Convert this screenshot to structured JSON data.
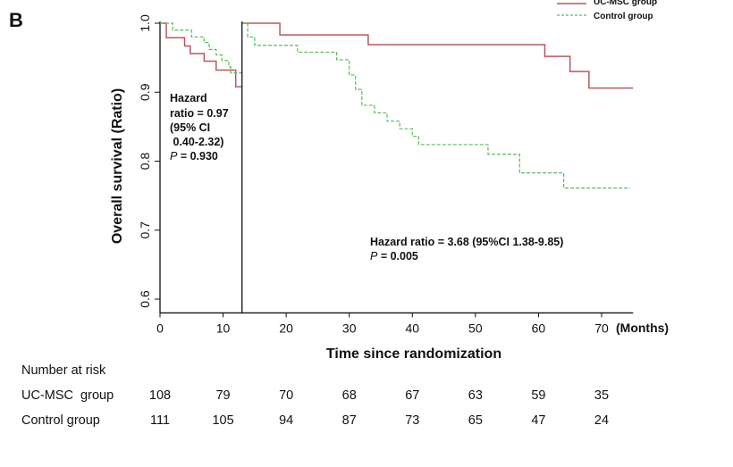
{
  "panel_label": "B",
  "chart_data": {
    "type": "line",
    "subtype": "kaplan-meier step",
    "xlabel": "Time since randomization",
    "x_unit_label": "(Months)",
    "ylabel": "Overall survival (Ratio)",
    "xlim": [
      0,
      75
    ],
    "ylim": [
      0.58,
      1.0
    ],
    "x_ticks": [
      0,
      10,
      20,
      30,
      40,
      50,
      60,
      70
    ],
    "y_ticks": [
      0.6,
      0.7,
      0.8,
      0.9,
      1.0
    ],
    "grid": false,
    "legend_position": "top-right",
    "landmark_month": 13,
    "colors": {
      "uc_msc": "#b5595c",
      "control": "#5cb85c",
      "axis": "#111111"
    },
    "series": [
      {
        "name": "UC-MSC group",
        "style": "solid",
        "segments": [
          {
            "x": [
              0,
              1,
              3.9,
              4.8,
              7,
              8.9,
              12,
              13
            ],
            "y": [
              1.0,
              0.979,
              0.967,
              0.956,
              0.945,
              0.932,
              0.908,
              0.908
            ]
          },
          {
            "x": [
              13,
              19,
              33,
              61,
              65,
              68,
              75
            ],
            "y": [
              1.0,
              0.983,
              0.969,
              0.952,
              0.93,
              0.906,
              0.906
            ]
          }
        ]
      },
      {
        "name": "Control group",
        "style": "dashed",
        "segments": [
          {
            "x": [
              0,
              2,
              5,
              7,
              7.8,
              8.9,
              9.8,
              10.9,
              11.2,
              13
            ],
            "y": [
              1.0,
              0.99,
              0.98,
              0.972,
              0.962,
              0.954,
              0.946,
              0.937,
              0.928,
              0.928
            ]
          },
          {
            "x": [
              13,
              13.9,
              15,
              21.8,
              28,
              30,
              31,
              32,
              34,
              36,
              38,
              40,
              41,
              52,
              57,
              64,
              74.5
            ],
            "y": [
              1.0,
              0.98,
              0.968,
              0.958,
              0.947,
              0.925,
              0.904,
              0.881,
              0.87,
              0.858,
              0.847,
              0.836,
              0.824,
              0.81,
              0.783,
              0.761,
              0.761
            ]
          }
        ]
      }
    ],
    "annotations": {
      "early": {
        "lines": [
          "Hazard",
          "ratio = 0.97",
          "(95% CI",
          " 0.40-2.32)"
        ],
        "p_label": "P",
        "p_value": " = 0.930"
      },
      "late": {
        "line": "Hazard ratio = 3.68 (95%CI 1.38-9.85)",
        "p_label": "P",
        "p_value": " = 0.005"
      }
    },
    "risk_table": {
      "title": "Number at risk",
      "times": [
        0,
        10,
        20,
        30,
        40,
        50,
        60,
        70
      ],
      "rows": [
        {
          "label": "UC-MSC  group",
          "values": [
            "108",
            "79",
            "70",
            "68",
            "67",
            "63",
            "59",
            "35"
          ]
        },
        {
          "label": "Control group",
          "values": [
            "111",
            "105",
            "94",
            "87",
            "73",
            "65",
            "47",
            "24"
          ]
        }
      ]
    }
  }
}
